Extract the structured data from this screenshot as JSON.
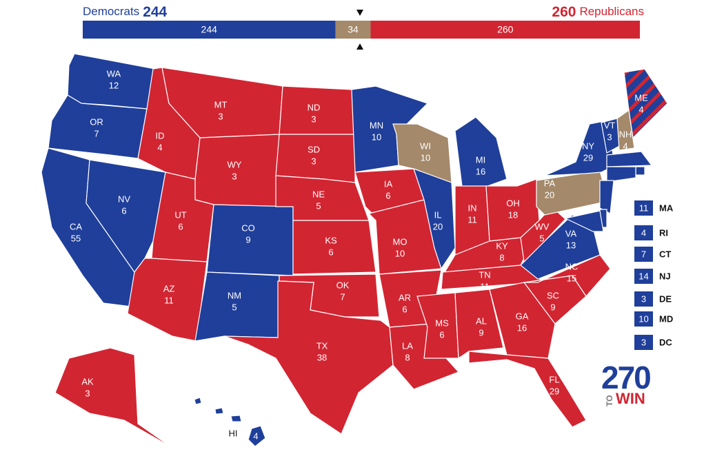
{
  "header": {
    "democrats_label": "Democrats",
    "republicans_label": "Republicans"
  },
  "bar": {
    "democrats": 244,
    "tossup": 34,
    "republicans": 260
  },
  "colors": {
    "D": "#1f3f9a",
    "T": "#a4896a",
    "R": "#d22532"
  },
  "states": [
    {
      "abbr": "WA",
      "votes": 12,
      "party": "D"
    },
    {
      "abbr": "OR",
      "votes": 7,
      "party": "D"
    },
    {
      "abbr": "CA",
      "votes": 55,
      "party": "D"
    },
    {
      "abbr": "NV",
      "votes": 6,
      "party": "D"
    },
    {
      "abbr": "ID",
      "votes": 4,
      "party": "R"
    },
    {
      "abbr": "MT",
      "votes": 3,
      "party": "R"
    },
    {
      "abbr": "WY",
      "votes": 3,
      "party": "R"
    },
    {
      "abbr": "UT",
      "votes": 6,
      "party": "R"
    },
    {
      "abbr": "AZ",
      "votes": 11,
      "party": "R"
    },
    {
      "abbr": "CO",
      "votes": 9,
      "party": "D"
    },
    {
      "abbr": "NM",
      "votes": 5,
      "party": "D"
    },
    {
      "abbr": "ND",
      "votes": 3,
      "party": "R"
    },
    {
      "abbr": "SD",
      "votes": 3,
      "party": "R"
    },
    {
      "abbr": "NE",
      "votes": 5,
      "party": "R"
    },
    {
      "abbr": "KS",
      "votes": 6,
      "party": "R"
    },
    {
      "abbr": "OK",
      "votes": 7,
      "party": "R"
    },
    {
      "abbr": "TX",
      "votes": 38,
      "party": "R"
    },
    {
      "abbr": "MN",
      "votes": 10,
      "party": "D"
    },
    {
      "abbr": "IA",
      "votes": 6,
      "party": "R"
    },
    {
      "abbr": "MO",
      "votes": 10,
      "party": "R"
    },
    {
      "abbr": "AR",
      "votes": 6,
      "party": "R"
    },
    {
      "abbr": "LA",
      "votes": 8,
      "party": "R"
    },
    {
      "abbr": "WI",
      "votes": 10,
      "party": "T"
    },
    {
      "abbr": "IL",
      "votes": 20,
      "party": "D"
    },
    {
      "abbr": "MI",
      "votes": 16,
      "party": "D"
    },
    {
      "abbr": "IN",
      "votes": 11,
      "party": "R"
    },
    {
      "abbr": "OH",
      "votes": 18,
      "party": "R"
    },
    {
      "abbr": "KY",
      "votes": 8,
      "party": "R"
    },
    {
      "abbr": "TN",
      "votes": 11,
      "party": "R"
    },
    {
      "abbr": "MS",
      "votes": 6,
      "party": "R"
    },
    {
      "abbr": "AL",
      "votes": 9,
      "party": "R"
    },
    {
      "abbr": "GA",
      "votes": 16,
      "party": "R"
    },
    {
      "abbr": "FL",
      "votes": 29,
      "party": "R"
    },
    {
      "abbr": "SC",
      "votes": 9,
      "party": "R"
    },
    {
      "abbr": "NC",
      "votes": 15,
      "party": "R"
    },
    {
      "abbr": "VA",
      "votes": 13,
      "party": "D"
    },
    {
      "abbr": "WV",
      "votes": 5,
      "party": "R"
    },
    {
      "abbr": "PA",
      "votes": 20,
      "party": "T"
    },
    {
      "abbr": "NY",
      "votes": 29,
      "party": "D"
    },
    {
      "abbr": "VT",
      "votes": 3,
      "party": "D"
    },
    {
      "abbr": "NH",
      "votes": 4,
      "party": "T"
    },
    {
      "abbr": "ME",
      "votes": 4,
      "party": "split"
    },
    {
      "abbr": "AK",
      "votes": 3,
      "party": "R"
    },
    {
      "abbr": "HI",
      "votes": 4,
      "party": "D"
    },
    {
      "abbr": "MA",
      "votes": 11,
      "party": "D"
    },
    {
      "abbr": "RI",
      "votes": 4,
      "party": "D"
    },
    {
      "abbr": "CT",
      "votes": 7,
      "party": "D"
    },
    {
      "abbr": "NJ",
      "votes": 14,
      "party": "D"
    },
    {
      "abbr": "DE",
      "votes": 3,
      "party": "D"
    },
    {
      "abbr": "MD",
      "votes": 10,
      "party": "D"
    },
    {
      "abbr": "DC",
      "votes": 3,
      "party": "D"
    }
  ],
  "logo": {
    "number": "270",
    "to": "TO",
    "win": "WIN"
  }
}
